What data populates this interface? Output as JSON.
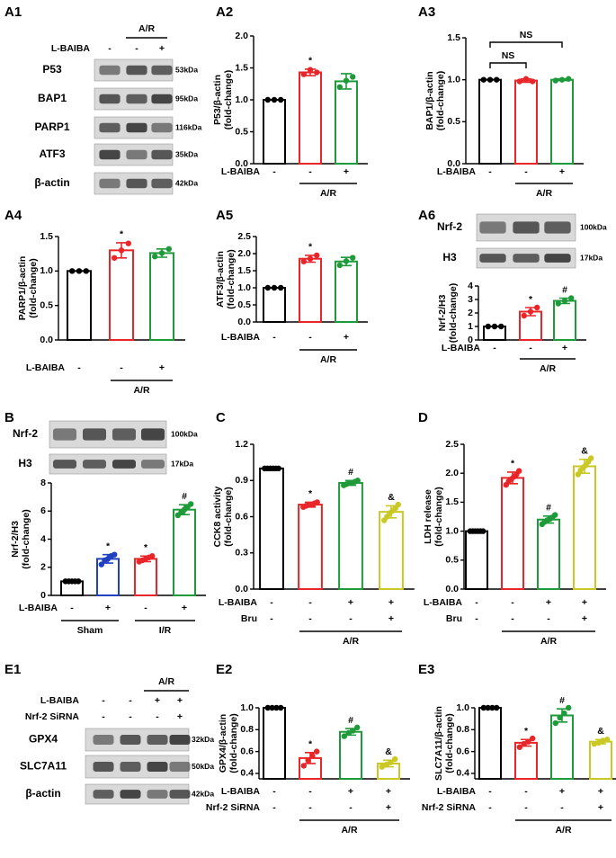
{
  "chart_data": [
    {
      "type": "bar",
      "panel": "A2",
      "y_label": [
        "P53/β-actin",
        "(fold-change)"
      ],
      "ylim": [
        0,
        2
      ],
      "yticks": [
        {
          "value": 0,
          "label": "0.0"
        },
        0.5,
        {
          "value": 1,
          "label": "1.0"
        },
        1.5,
        {
          "value": 2,
          "label": "2.0"
        }
      ],
      "values": [
        1.0,
        1.43,
        1.29
      ],
      "errors": [
        0,
        0.05,
        0.12
      ],
      "points": [
        [
          1,
          1,
          1
        ],
        [
          1.4,
          1.47,
          1.43
        ],
        [
          1.2,
          1.3,
          1.36
        ]
      ],
      "colors": [
        "#000000",
        "#e8262a",
        "#1e9a3a"
      ],
      "annotations": [
        null,
        "*",
        null
      ],
      "rows": [
        {
          "name": "L-BAIBA",
          "marks": [
            "-",
            "-",
            "+"
          ]
        }
      ],
      "group_labels": [
        "A/R"
      ]
    },
    {
      "type": "bar",
      "panel": "A3",
      "y_label": [
        "BAP1/β-actin",
        "(fold-change)"
      ],
      "ylim": [
        0,
        1.5
      ],
      "yticks": [
        {
          "value": 0,
          "label": "0.0"
        },
        0.5,
        {
          "value": 1,
          "label": "1.0"
        },
        1.5
      ],
      "values": [
        1.0,
        0.99,
        1.0
      ],
      "errors": [
        0,
        0.02,
        0.01
      ],
      "points": [
        [
          1,
          1,
          1
        ],
        [
          0.98,
          1.01,
          0.98
        ],
        [
          0.99,
          1.0,
          1.01
        ]
      ],
      "colors": [
        "#000000",
        "#e8262a",
        "#1e9a3a"
      ],
      "brackets": [
        "NS",
        "NS"
      ],
      "rows": [
        {
          "name": "L-BAIBA",
          "marks": [
            "-",
            "-",
            "+"
          ]
        }
      ],
      "group_labels": [
        "A/R"
      ]
    },
    {
      "type": "bar",
      "panel": "A4",
      "y_label": [
        "PARP1/β-actin",
        "(fold-change)"
      ],
      "ylim": [
        0,
        1.5
      ],
      "yticks": [
        {
          "value": 0,
          "label": "0.0"
        },
        0.5,
        {
          "value": 1,
          "label": "1.0"
        },
        1.5
      ],
      "values": [
        1.0,
        1.3,
        1.26
      ],
      "errors": [
        0,
        0.11,
        0.06
      ],
      "points": [
        [
          1,
          1,
          1
        ],
        [
          1.19,
          1.3,
          1.4
        ],
        [
          1.21,
          1.26,
          1.32
        ]
      ],
      "colors": [
        "#000000",
        "#e8262a",
        "#1e9a3a"
      ],
      "annotations": [
        null,
        "*",
        null
      ],
      "rows": [
        {
          "name": "L-BAIBA",
          "marks": [
            "-",
            "-",
            "+"
          ]
        }
      ],
      "group_labels": [
        "A/R"
      ]
    },
    {
      "type": "bar",
      "panel": "A5",
      "y_label": [
        "ATF3/β-actin",
        "(fold-change)"
      ],
      "ylim": [
        0,
        2.5
      ],
      "yticks": [
        {
          "value": 0,
          "label": "0.0"
        },
        0.5,
        {
          "value": 1,
          "label": "1.0"
        },
        1.5,
        {
          "value": 2,
          "label": "2.0"
        },
        2.5
      ],
      "values": [
        1.0,
        1.85,
        1.77
      ],
      "errors": [
        0,
        0.1,
        0.12
      ],
      "points": [
        [
          1,
          1,
          1
        ],
        [
          1.77,
          1.85,
          1.95
        ],
        [
          1.66,
          1.78,
          1.88
        ]
      ],
      "colors": [
        "#000000",
        "#e8262a",
        "#1e9a3a"
      ],
      "annotations": [
        null,
        "*",
        null
      ],
      "rows": [
        {
          "name": "L-BAIBA",
          "marks": [
            "-",
            "-",
            "+"
          ]
        }
      ],
      "group_labels": [
        "A/R"
      ]
    },
    {
      "type": "bar",
      "y_label": [
        "Nrf-2/H3",
        "(fold-change)"
      ],
      "ylim": [
        0,
        4
      ],
      "yticks": [
        0,
        1,
        2,
        3,
        4
      ],
      "values": [
        1.0,
        2.1,
        2.9
      ],
      "errors": [
        0,
        0.3,
        0.2
      ],
      "points": [
        [
          1,
          1,
          1
        ],
        [
          1.8,
          2.1,
          2.4
        ],
        [
          2.7,
          2.9,
          3.1
        ]
      ],
      "colors": [
        "#000000",
        "#e8262a",
        "#1e9a3a"
      ],
      "annotations": [
        null,
        "*",
        "#"
      ],
      "rows": [
        {
          "name": "L-BAIBA",
          "marks": [
            "-",
            "-",
            "+"
          ]
        }
      ],
      "group_labels": [
        "A/R"
      ]
    },
    {
      "type": "bar",
      "y_label": [
        "Nrf-2/H3",
        "(fold-change)"
      ],
      "ylim": [
        0,
        8
      ],
      "yticks": [
        0,
        2,
        4,
        6,
        8
      ],
      "values": [
        1.0,
        2.6,
        2.6,
        6.1
      ],
      "errors": [
        0.03,
        0.3,
        0.2,
        0.35
      ],
      "points": [
        [
          1,
          1,
          1,
          1,
          1
        ],
        [
          2.2,
          2.5,
          2.6,
          2.8,
          2.9
        ],
        [
          2.4,
          2.5,
          2.6,
          2.7,
          2.8
        ],
        [
          5.7,
          5.9,
          6.1,
          6.3,
          6.5
        ]
      ],
      "colors": [
        "#000000",
        "#2040c0",
        "#e8262a",
        "#1e9a3a"
      ],
      "annotations": [
        null,
        "*",
        "*",
        "#"
      ],
      "rows": [
        {
          "name": "L-BAIBA",
          "marks": [
            "-",
            "+",
            "-",
            "+"
          ]
        }
      ],
      "group_labels": [
        "Sham",
        "I/R"
      ]
    },
    {
      "type": "bar",
      "panel": "C",
      "y_label": [
        "CCK8 activity",
        "(fold-change)"
      ],
      "ylim": [
        0,
        1.2
      ],
      "yticks": [
        {
          "value": 0,
          "label": "0.0"
        },
        0.3,
        0.6,
        0.9,
        1.2
      ],
      "values": [
        1.0,
        0.7,
        0.88,
        0.64
      ],
      "errors": [
        0.01,
        0.02,
        0.02,
        0.05
      ],
      "points": [
        [
          1,
          1,
          1,
          1,
          1,
          1
        ],
        [
          0.68,
          0.69,
          0.7,
          0.7,
          0.71,
          0.72
        ],
        [
          0.86,
          0.87,
          0.88,
          0.88,
          0.89,
          0.9
        ],
        [
          0.57,
          0.6,
          0.63,
          0.65,
          0.67,
          0.7
        ]
      ],
      "colors": [
        "#000000",
        "#e8262a",
        "#1e9a3a",
        "#c9c824"
      ],
      "annotations": [
        null,
        "*",
        "#",
        "&"
      ],
      "rows": [
        {
          "name": "L-BAIBA",
          "marks": [
            "-",
            "-",
            "+",
            "+"
          ]
        },
        {
          "name": "Bru",
          "marks": [
            "-",
            "-",
            "-",
            "+"
          ]
        }
      ],
      "group_labels": [
        "A/R"
      ]
    },
    {
      "type": "bar",
      "panel": "D",
      "y_label": [
        "LDH release",
        "(fold-change)"
      ],
      "ylim": [
        0,
        2.5
      ],
      "yticks": [
        {
          "value": 0,
          "label": "0.0"
        },
        0.5,
        {
          "value": 1,
          "label": "1.0"
        },
        1.5,
        {
          "value": 2,
          "label": "2.0"
        },
        2.5
      ],
      "values": [
        1.0,
        1.92,
        1.2,
        2.12
      ],
      "errors": [
        0.01,
        0.1,
        0.06,
        0.12
      ],
      "points": [
        [
          1,
          1,
          1,
          1,
          1,
          1
        ],
        [
          1.8,
          1.86,
          1.9,
          1.94,
          1.98,
          2.04
        ],
        [
          1.12,
          1.16,
          1.19,
          1.21,
          1.24,
          1.28
        ],
        [
          1.98,
          2.05,
          2.1,
          2.14,
          2.2,
          2.26
        ]
      ],
      "colors": [
        "#000000",
        "#e8262a",
        "#1e9a3a",
        "#c9c824"
      ],
      "annotations": [
        null,
        "*",
        "#",
        "&"
      ],
      "rows": [
        {
          "name": "L-BAIBA",
          "marks": [
            "-",
            "-",
            "+",
            "+"
          ]
        },
        {
          "name": "Bru",
          "marks": [
            "-",
            "-",
            "-",
            "+"
          ]
        }
      ],
      "group_labels": [
        "A/R"
      ]
    },
    {
      "type": "bar",
      "panel": "E2",
      "y_label": [
        "GPX4/β-actin",
        "(fold-change)"
      ],
      "ylim": [
        0.35,
        1
      ],
      "yticks": [
        0.4,
        0.6,
        0.8,
        {
          "value": 1,
          "label": "1.0"
        }
      ],
      "values": [
        1.0,
        0.54,
        0.78,
        0.49
      ],
      "errors": [
        0,
        0.05,
        0.03,
        0.03
      ],
      "points": [
        [
          1,
          1,
          1,
          1
        ],
        [
          0.47,
          0.52,
          0.56,
          0.6
        ],
        [
          0.74,
          0.77,
          0.79,
          0.82
        ],
        [
          0.46,
          0.48,
          0.5,
          0.53
        ]
      ],
      "colors": [
        "#000000",
        "#e8262a",
        "#1e9a3a",
        "#c9c824"
      ],
      "annotations": [
        null,
        "*",
        "#",
        "&"
      ],
      "rows": [
        {
          "name": "L-BAIBA",
          "marks": [
            "-",
            "-",
            "+",
            "+"
          ]
        },
        {
          "name": "Nrf-2 SiRNA",
          "marks": [
            "-",
            "-",
            "-",
            "+"
          ]
        }
      ],
      "group_labels": [
        "A/R"
      ]
    },
    {
      "type": "bar",
      "panel": "E3",
      "y_label": [
        "SLC7A11/β-actin",
        "(fold-change)"
      ],
      "ylim": [
        0.35,
        1
      ],
      "yticks": [
        0.4,
        0.6,
        0.8,
        {
          "value": 1,
          "label": "1.0"
        }
      ],
      "values": [
        1.0,
        0.68,
        0.93,
        0.69
      ],
      "errors": [
        0,
        0.03,
        0.06,
        0.02
      ],
      "points": [
        [
          1,
          1,
          1,
          1
        ],
        [
          0.64,
          0.67,
          0.69,
          0.72
        ],
        [
          0.86,
          0.91,
          0.95,
          1.0
        ],
        [
          0.67,
          0.68,
          0.7,
          0.71
        ]
      ],
      "colors": [
        "#000000",
        "#e8262a",
        "#1e9a3a",
        "#c9c824"
      ],
      "annotations": [
        null,
        "*",
        "#",
        "&"
      ],
      "rows": [
        {
          "name": "L-BAIBA",
          "marks": [
            "-",
            "-",
            "+",
            "+"
          ]
        },
        {
          "name": "Nrf-2 SiRNA",
          "marks": [
            "-",
            "-",
            "-",
            "+"
          ]
        }
      ],
      "group_labels": [
        "A/R"
      ]
    }
  ],
  "blots": [
    {
      "panel": "A1",
      "group_label": "A/R",
      "conditions": [
        {
          "name": "L-BAIBA",
          "marks": [
            "-",
            "-",
            "+"
          ]
        }
      ],
      "bands": [
        {
          "name": "P53",
          "size": "53kDa"
        },
        {
          "name": "BAP1",
          "size": "95kDa"
        },
        {
          "name": "PARP1",
          "size": "116kDa"
        },
        {
          "name": "ATF3",
          "size": "35kDa"
        },
        {
          "name": "β-actin",
          "size": "42kDa"
        }
      ]
    },
    {
      "panel": "A6",
      "bands": [
        {
          "name": "Nrf-2",
          "size": "100kDa"
        },
        {
          "name": "H3",
          "size": "17kDa"
        }
      ]
    },
    {
      "panel": "B",
      "bands": [
        {
          "name": "Nrf-2",
          "size": "100kDa"
        },
        {
          "name": "H3",
          "size": "17kDa"
        }
      ]
    },
    {
      "panel": "E1",
      "group_label": "A/R",
      "conditions": [
        {
          "name": "L-BAIBA",
          "marks": [
            "-",
            "-",
            "+",
            "+"
          ]
        },
        {
          "name": "Nrf-2 SiRNA",
          "marks": [
            "-",
            "-",
            "-",
            "+"
          ]
        }
      ],
      "bands": [
        {
          "name": "GPX4",
          "size": "32kDa"
        },
        {
          "name": "SLC7A11",
          "size": "50kDa"
        },
        {
          "name": "β-actin",
          "size": "42kDa"
        }
      ]
    }
  ]
}
